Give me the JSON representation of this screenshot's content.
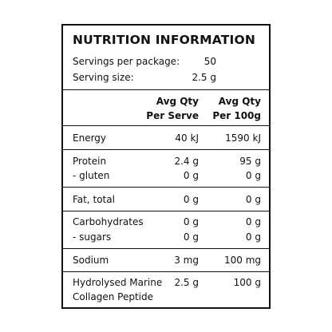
{
  "panel": {
    "title": "NUTRITION INFORMATION",
    "servings_label": "Servings per package:",
    "servings_value": "50",
    "size_label": "Serving size:",
    "size_value": "2.5 g",
    "col1_line1": "Avg Qty",
    "col1_line2": "Per Serve",
    "col2_line1": "Avg Qty",
    "col2_line2": "Per 100g",
    "rows": [
      {
        "label": "Energy",
        "serve": "40 kJ",
        "per100": "1590 kJ"
      },
      {
        "label": "Protein",
        "serve": "2.4 g",
        "per100": "95 g"
      },
      {
        "label": "-  gluten",
        "serve": "0 g",
        "per100": "0 g"
      },
      {
        "label": "Fat, total",
        "serve": "0 g",
        "per100": "0 g"
      },
      {
        "label": "Carbohydrates",
        "serve": "0 g",
        "per100": "0 g"
      },
      {
        "label": "-  sugars",
        "serve": "0 g",
        "per100": "0 g"
      },
      {
        "label": "Sodium",
        "serve": "3 mg",
        "per100": "100 mg"
      },
      {
        "label": "Hydrolysed Marine",
        "serve": "2.5 g",
        "per100": "100 g"
      },
      {
        "label": "Collagen Peptide",
        "serve": "",
        "per100": ""
      }
    ]
  }
}
